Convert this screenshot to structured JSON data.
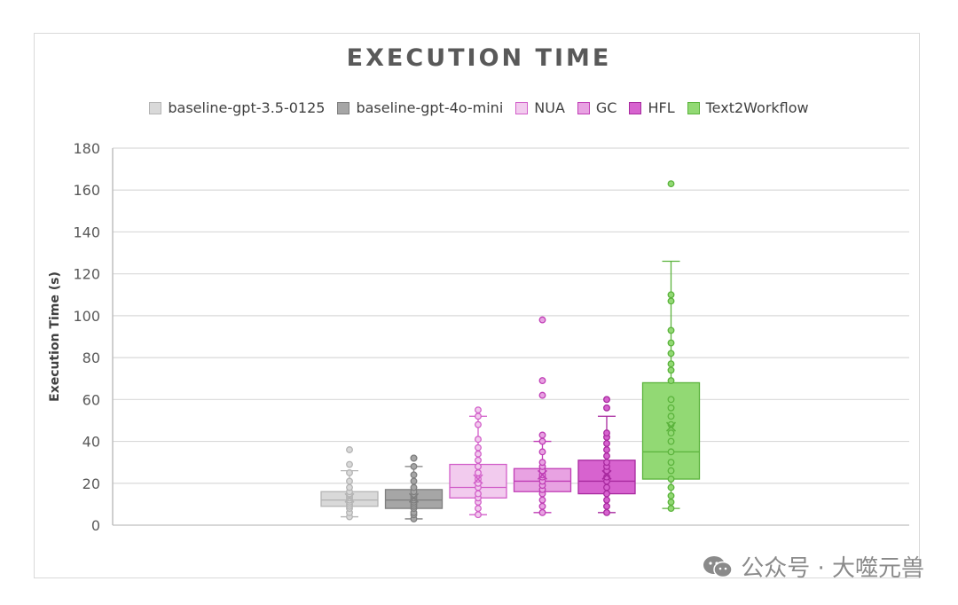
{
  "chart_data": {
    "type": "box",
    "title": "EXECUTION TIME",
    "ylabel": "Execution Time (s)",
    "xlabel": "",
    "ylim": [
      0,
      180
    ],
    "yticks": [
      0,
      20,
      40,
      60,
      80,
      100,
      120,
      140,
      160,
      180
    ],
    "grid": true,
    "legend_position": "top",
    "series": [
      {
        "name": "baseline-gpt-3.5-0125",
        "fill": "#d9d9d9",
        "stroke": "#b4b4b4",
        "min": 4,
        "q1": 9,
        "median": 12,
        "q3": 16,
        "max": 26,
        "mean": 13,
        "points": [
          4,
          6,
          8,
          9,
          10,
          11,
          12,
          12,
          13,
          14,
          15,
          16,
          18,
          21,
          25,
          29,
          36
        ]
      },
      {
        "name": "baseline-gpt-4o-mini",
        "fill": "#a6a6a6",
        "stroke": "#7f7f7f",
        "min": 3,
        "q1": 8,
        "median": 12,
        "q3": 17,
        "max": 28,
        "mean": 13,
        "points": [
          3,
          5,
          6,
          8,
          9,
          10,
          11,
          12,
          13,
          14,
          16,
          18,
          21,
          24,
          28,
          32,
          32
        ]
      },
      {
        "name": "NUA",
        "fill": "#f2cbee",
        "stroke": "#d25fc9",
        "min": 5,
        "q1": 13,
        "median": 18,
        "q3": 29,
        "max": 52,
        "mean": 22,
        "points": [
          5,
          8,
          11,
          13,
          15,
          18,
          20,
          22,
          25,
          28,
          31,
          34,
          37,
          41,
          48,
          52,
          55
        ]
      },
      {
        "name": "GC",
        "fill": "#e8a2e2",
        "stroke": "#c03eb6",
        "min": 6,
        "q1": 16,
        "median": 21,
        "q3": 27,
        "max": 40,
        "mean": 24,
        "points": [
          6,
          9,
          12,
          15,
          17,
          19,
          21,
          23,
          24,
          26,
          28,
          30,
          35,
          40,
          43,
          62,
          69,
          98
        ]
      },
      {
        "name": "HFL",
        "fill": "#d763cf",
        "stroke": "#a82a9f",
        "min": 6,
        "q1": 15,
        "median": 21,
        "q3": 31,
        "max": 52,
        "mean": 24,
        "points": [
          6,
          9,
          12,
          15,
          18,
          21,
          23,
          26,
          28,
          30,
          33,
          36,
          39,
          42,
          44,
          56,
          60
        ]
      },
      {
        "name": "Text2Workflow",
        "fill": "#92d974",
        "stroke": "#5bb33c",
        "min": 8,
        "q1": 22,
        "median": 35,
        "q3": 68,
        "max": 126,
        "mean": 47,
        "points": [
          8,
          11,
          14,
          18,
          22,
          26,
          30,
          35,
          40,
          44,
          48,
          52,
          56,
          60,
          69,
          74,
          77,
          82,
          87,
          93,
          107,
          110,
          163
        ]
      }
    ]
  },
  "watermark": {
    "text": "公众号 · 大噬元兽"
  }
}
